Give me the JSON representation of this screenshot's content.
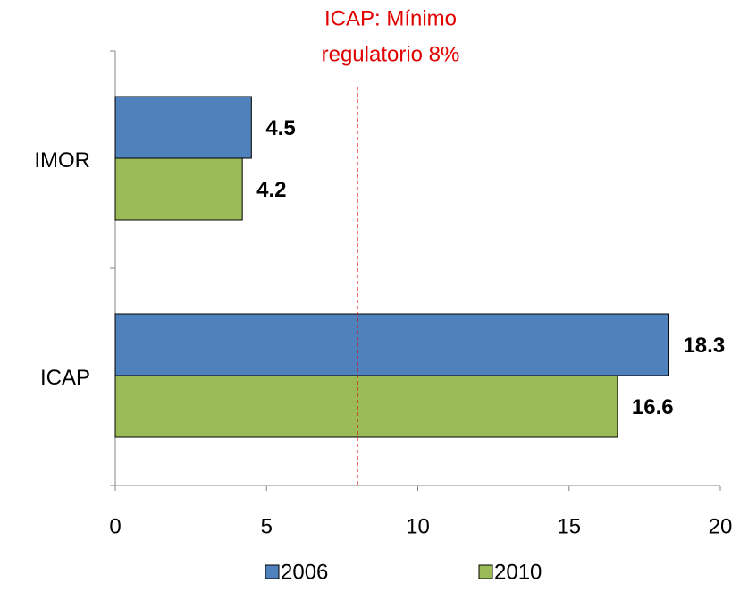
{
  "chart_data": {
    "type": "hbar",
    "categories": [
      "IMOR",
      "ICAP"
    ],
    "series": [
      {
        "name": "2006",
        "color": "#4f81bd",
        "values": [
          4.5,
          18.3
        ]
      },
      {
        "name": "2010",
        "color": "#9bbb59",
        "values": [
          4.2,
          16.6
        ]
      }
    ],
    "xlim": [
      0,
      20
    ],
    "xticks": [
      0,
      5,
      10,
      15,
      20
    ],
    "reference_line": {
      "value": 8,
      "color": "#e00000",
      "label": [
        "ICAP: Mínimo",
        "regulatorio 8%"
      ]
    },
    "legend": "bottom"
  }
}
